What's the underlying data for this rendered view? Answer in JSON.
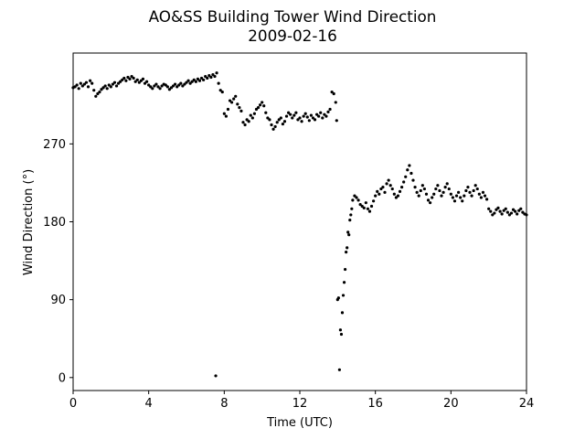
{
  "chart_data": {
    "type": "scatter",
    "title": "AO&SS Building Tower Wind Direction",
    "subtitle": "2009-02-16",
    "xlabel": "Time (UTC)",
    "ylabel": "Wind Direction (°)",
    "xlim": [
      0,
      24
    ],
    "ylim": [
      -15,
      375
    ],
    "xticks": [
      0,
      4,
      8,
      12,
      16,
      20,
      24
    ],
    "yticks": [
      0,
      90,
      180,
      270
    ],
    "grid": false,
    "marker_color": "#000000",
    "series": [
      {
        "points": [
          [
            0.0,
            335
          ],
          [
            0.1,
            336
          ],
          [
            0.2,
            338
          ],
          [
            0.3,
            334
          ],
          [
            0.4,
            340
          ],
          [
            0.5,
            337
          ],
          [
            0.6,
            339
          ],
          [
            0.7,
            341
          ],
          [
            0.8,
            336
          ],
          [
            0.9,
            343
          ],
          [
            1.0,
            340
          ],
          [
            1.1,
            332
          ],
          [
            1.2,
            325
          ],
          [
            1.3,
            328
          ],
          [
            1.4,
            330
          ],
          [
            1.5,
            333
          ],
          [
            1.6,
            335
          ],
          [
            1.7,
            337
          ],
          [
            1.8,
            334
          ],
          [
            1.9,
            338
          ],
          [
            2.0,
            336
          ],
          [
            2.1,
            339
          ],
          [
            2.2,
            341
          ],
          [
            2.3,
            337
          ],
          [
            2.4,
            340
          ],
          [
            2.5,
            342
          ],
          [
            2.6,
            344
          ],
          [
            2.7,
            346
          ],
          [
            2.8,
            343
          ],
          [
            2.9,
            347
          ],
          [
            3.0,
            345
          ],
          [
            3.1,
            348
          ],
          [
            3.2,
            346
          ],
          [
            3.3,
            342
          ],
          [
            3.4,
            344
          ],
          [
            3.5,
            341
          ],
          [
            3.6,
            343
          ],
          [
            3.7,
            345
          ],
          [
            3.8,
            340
          ],
          [
            3.9,
            342
          ],
          [
            4.0,
            338
          ],
          [
            4.1,
            336
          ],
          [
            4.2,
            334
          ],
          [
            4.3,
            337
          ],
          [
            4.4,
            339
          ],
          [
            4.5,
            336
          ],
          [
            4.6,
            334
          ],
          [
            4.7,
            337
          ],
          [
            4.8,
            339
          ],
          [
            4.9,
            338
          ],
          [
            5.0,
            336
          ],
          [
            5.1,
            333
          ],
          [
            5.2,
            335
          ],
          [
            5.3,
            337
          ],
          [
            5.4,
            339
          ],
          [
            5.5,
            336
          ],
          [
            5.6,
            338
          ],
          [
            5.7,
            340
          ],
          [
            5.8,
            337
          ],
          [
            5.9,
            339
          ],
          [
            6.0,
            341
          ],
          [
            6.1,
            343
          ],
          [
            6.2,
            340
          ],
          [
            6.3,
            342
          ],
          [
            6.4,
            344
          ],
          [
            6.5,
            342
          ],
          [
            6.6,
            345
          ],
          [
            6.7,
            343
          ],
          [
            6.8,
            346
          ],
          [
            6.9,
            344
          ],
          [
            7.0,
            348
          ],
          [
            7.1,
            346
          ],
          [
            7.2,
            349
          ],
          [
            7.3,
            347
          ],
          [
            7.4,
            350
          ],
          [
            7.5,
            348
          ],
          [
            7.55,
            2
          ],
          [
            7.6,
            352
          ],
          [
            7.7,
            340
          ],
          [
            7.8,
            332
          ],
          [
            7.9,
            330
          ],
          [
            8.0,
            305
          ],
          [
            8.1,
            302
          ],
          [
            8.2,
            310
          ],
          [
            8.3,
            320
          ],
          [
            8.4,
            318
          ],
          [
            8.5,
            322
          ],
          [
            8.6,
            325
          ],
          [
            8.7,
            316
          ],
          [
            8.8,
            312
          ],
          [
            8.9,
            308
          ],
          [
            9.0,
            295
          ],
          [
            9.1,
            292
          ],
          [
            9.2,
            298
          ],
          [
            9.3,
            296
          ],
          [
            9.4,
            303
          ],
          [
            9.5,
            300
          ],
          [
            9.6,
            305
          ],
          [
            9.7,
            310
          ],
          [
            9.8,
            312
          ],
          [
            9.9,
            315
          ],
          [
            10.0,
            318
          ],
          [
            10.1,
            314
          ],
          [
            10.2,
            306
          ],
          [
            10.3,
            300
          ],
          [
            10.4,
            298
          ],
          [
            10.5,
            292
          ],
          [
            10.6,
            287
          ],
          [
            10.7,
            290
          ],
          [
            10.8,
            295
          ],
          [
            10.9,
            298
          ],
          [
            11.0,
            300
          ],
          [
            11.1,
            293
          ],
          [
            11.2,
            296
          ],
          [
            11.3,
            302
          ],
          [
            11.4,
            306
          ],
          [
            11.5,
            304
          ],
          [
            11.6,
            300
          ],
          [
            11.7,
            303
          ],
          [
            11.8,
            306
          ],
          [
            11.9,
            298
          ],
          [
            12.0,
            300
          ],
          [
            12.1,
            296
          ],
          [
            12.2,
            302
          ],
          [
            12.3,
            305
          ],
          [
            12.4,
            301
          ],
          [
            12.5,
            297
          ],
          [
            12.6,
            303
          ],
          [
            12.7,
            300
          ],
          [
            12.8,
            298
          ],
          [
            12.9,
            304
          ],
          [
            13.0,
            302
          ],
          [
            13.1,
            306
          ],
          [
            13.2,
            300
          ],
          [
            13.3,
            304
          ],
          [
            13.4,
            302
          ],
          [
            13.5,
            307
          ],
          [
            13.6,
            310
          ],
          [
            13.7,
            330
          ],
          [
            13.8,
            328
          ],
          [
            13.9,
            318
          ],
          [
            13.95,
            297
          ],
          [
            14.0,
            90
          ],
          [
            14.05,
            92
          ],
          [
            14.1,
            9
          ],
          [
            14.15,
            55
          ],
          [
            14.2,
            50
          ],
          [
            14.25,
            75
          ],
          [
            14.3,
            95
          ],
          [
            14.35,
            110
          ],
          [
            14.4,
            125
          ],
          [
            14.45,
            145
          ],
          [
            14.5,
            150
          ],
          [
            14.55,
            168
          ],
          [
            14.6,
            165
          ],
          [
            14.65,
            182
          ],
          [
            14.7,
            188
          ],
          [
            14.75,
            195
          ],
          [
            14.8,
            205
          ],
          [
            14.9,
            210
          ],
          [
            15.0,
            208
          ],
          [
            15.1,
            205
          ],
          [
            15.2,
            200
          ],
          [
            15.3,
            198
          ],
          [
            15.4,
            196
          ],
          [
            15.5,
            202
          ],
          [
            15.6,
            195
          ],
          [
            15.7,
            192
          ],
          [
            15.8,
            198
          ],
          [
            15.9,
            204
          ],
          [
            16.0,
            210
          ],
          [
            16.1,
            215
          ],
          [
            16.2,
            212
          ],
          [
            16.3,
            218
          ],
          [
            16.4,
            220
          ],
          [
            16.5,
            214
          ],
          [
            16.6,
            224
          ],
          [
            16.7,
            228
          ],
          [
            16.8,
            222
          ],
          [
            16.9,
            218
          ],
          [
            17.0,
            212
          ],
          [
            17.1,
            208
          ],
          [
            17.2,
            210
          ],
          [
            17.3,
            215
          ],
          [
            17.4,
            220
          ],
          [
            17.5,
            226
          ],
          [
            17.6,
            232
          ],
          [
            17.7,
            240
          ],
          [
            17.8,
            245
          ],
          [
            17.9,
            236
          ],
          [
            18.0,
            228
          ],
          [
            18.1,
            220
          ],
          [
            18.2,
            214
          ],
          [
            18.3,
            210
          ],
          [
            18.4,
            216
          ],
          [
            18.5,
            222
          ],
          [
            18.6,
            218
          ],
          [
            18.7,
            212
          ],
          [
            18.8,
            205
          ],
          [
            18.9,
            202
          ],
          [
            19.0,
            208
          ],
          [
            19.1,
            212
          ],
          [
            19.2,
            218
          ],
          [
            19.3,
            222
          ],
          [
            19.4,
            216
          ],
          [
            19.5,
            210
          ],
          [
            19.6,
            214
          ],
          [
            19.7,
            220
          ],
          [
            19.8,
            224
          ],
          [
            19.9,
            218
          ],
          [
            20.0,
            212
          ],
          [
            20.1,
            208
          ],
          [
            20.2,
            204
          ],
          [
            20.3,
            210
          ],
          [
            20.4,
            214
          ],
          [
            20.5,
            208
          ],
          [
            20.6,
            204
          ],
          [
            20.7,
            210
          ],
          [
            20.8,
            216
          ],
          [
            20.9,
            220
          ],
          [
            21.0,
            214
          ],
          [
            21.1,
            210
          ],
          [
            21.2,
            216
          ],
          [
            21.3,
            222
          ],
          [
            21.4,
            218
          ],
          [
            21.5,
            212
          ],
          [
            21.6,
            208
          ],
          [
            21.7,
            214
          ],
          [
            21.8,
            210
          ],
          [
            21.9,
            206
          ],
          [
            22.0,
            195
          ],
          [
            22.1,
            192
          ],
          [
            22.2,
            188
          ],
          [
            22.3,
            190
          ],
          [
            22.4,
            194
          ],
          [
            22.5,
            196
          ],
          [
            22.6,
            192
          ],
          [
            22.7,
            189
          ],
          [
            22.8,
            193
          ],
          [
            22.9,
            195
          ],
          [
            23.0,
            191
          ],
          [
            23.1,
            188
          ],
          [
            23.2,
            190
          ],
          [
            23.3,
            194
          ],
          [
            23.4,
            192
          ],
          [
            23.5,
            189
          ],
          [
            23.6,
            193
          ],
          [
            23.7,
            195
          ],
          [
            23.8,
            191
          ],
          [
            23.9,
            189
          ],
          [
            24.0,
            188
          ]
        ]
      }
    ]
  }
}
